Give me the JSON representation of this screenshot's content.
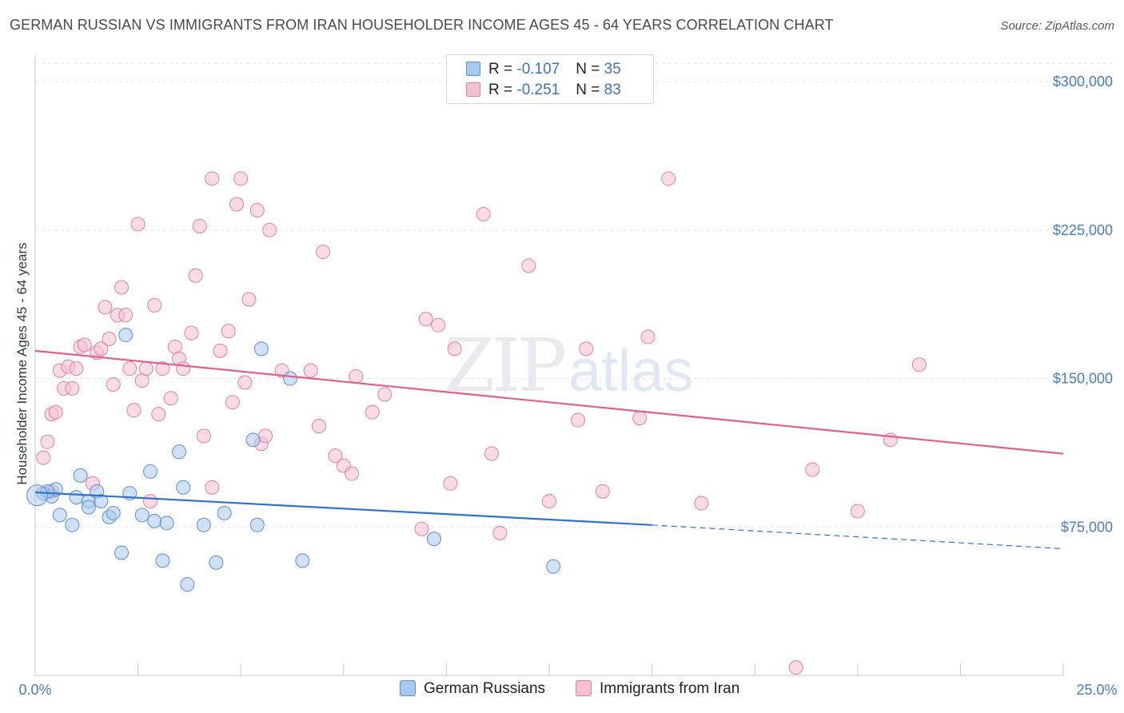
{
  "title": "GERMAN RUSSIAN VS IMMIGRANTS FROM IRAN HOUSEHOLDER INCOME AGES 45 - 64 YEARS CORRELATION CHART",
  "source": "Source: ZipAtlas.com",
  "watermark": {
    "zip": "ZIP",
    "atlas": "atlas"
  },
  "legend": {
    "rows": [
      {
        "r_label": "R = ",
        "r_value": "-0.107",
        "n_label": "N = ",
        "n_value": "35",
        "color": "#a9c8f0",
        "border": "#5b8fd6"
      },
      {
        "r_label": "R = ",
        "r_value": "-0.251",
        "n_label": "N = ",
        "n_value": "83",
        "color": "#f7bfd2",
        "border": "#e27fa3"
      }
    ]
  },
  "bottom_legend": [
    {
      "label": "German Russians",
      "color": "#a9c8f0",
      "border": "#5b8fd6"
    },
    {
      "label": "Immigrants from Iran",
      "color": "#f7bfd2",
      "border": "#e27fa3"
    }
  ],
  "chart_data": {
    "type": "scatter",
    "title": "GERMAN RUSSIAN VS IMMIGRANTS FROM IRAN HOUSEHOLDER INCOME AGES 45 - 64 YEARS CORRELATION CHART",
    "xlabel": "",
    "ylabel": "Householder Income Ages 45 - 64 years",
    "xlim": [
      0,
      25
    ],
    "ylim": [
      0,
      317000
    ],
    "x_tick_labels": [
      "0.0%",
      "25.0%"
    ],
    "y_ticks": [
      75000,
      150000,
      225000,
      300000
    ],
    "y_tick_labels": [
      "$75,000",
      "$150,000",
      "$225,000",
      "$300,000"
    ],
    "grid": true,
    "legend_position": "top-center",
    "series": [
      {
        "name": "German Russians",
        "color": "#a9c8f0",
        "stroke": "#5b8fd6",
        "trend": {
          "x": [
            0,
            15
          ],
          "y": [
            92500,
            76000
          ],
          "dashed_to": [
            25,
            64000
          ],
          "color": "#2f72c9"
        },
        "points": [
          [
            0.2,
            92000
          ],
          [
            0.4,
            90500
          ],
          [
            0.5,
            94000
          ],
          [
            0.6,
            81000
          ],
          [
            0.9,
            76000
          ],
          [
            1.0,
            90000
          ],
          [
            1.3,
            88000
          ],
          [
            1.1,
            101000
          ],
          [
            1.3,
            85000
          ],
          [
            1.5,
            93000
          ],
          [
            1.6,
            88000
          ],
          [
            1.8,
            80000
          ],
          [
            1.9,
            82000
          ],
          [
            2.1,
            62000
          ],
          [
            2.2,
            172000
          ],
          [
            2.3,
            92000
          ],
          [
            2.6,
            81000
          ],
          [
            2.8,
            103000
          ],
          [
            2.9,
            78000
          ],
          [
            3.1,
            58000
          ],
          [
            3.2,
            77000
          ],
          [
            3.5,
            113000
          ],
          [
            3.6,
            95000
          ],
          [
            3.7,
            46000
          ],
          [
            4.1,
            76000
          ],
          [
            4.4,
            57000
          ],
          [
            4.6,
            82000
          ],
          [
            5.3,
            119000
          ],
          [
            5.4,
            76000
          ],
          [
            5.5,
            165000
          ],
          [
            6.2,
            150000
          ],
          [
            6.5,
            58000
          ],
          [
            9.7,
            69000
          ],
          [
            12.6,
            55000
          ],
          [
            0.3,
            93000
          ]
        ]
      },
      {
        "name": "Immigrants from Iran",
        "color": "#f7bfd2",
        "stroke": "#e27fa3",
        "trend": {
          "x": [
            0,
            25
          ],
          "y": [
            164000,
            112000
          ],
          "color": "#e0608c"
        },
        "points": [
          [
            0.2,
            110000
          ],
          [
            0.3,
            118000
          ],
          [
            0.4,
            93000
          ],
          [
            0.4,
            132000
          ],
          [
            0.5,
            133000
          ],
          [
            0.6,
            154000
          ],
          [
            0.7,
            145000
          ],
          [
            0.8,
            156000
          ],
          [
            0.9,
            145000
          ],
          [
            1.0,
            155000
          ],
          [
            1.1,
            166000
          ],
          [
            1.2,
            167000
          ],
          [
            1.4,
            97000
          ],
          [
            1.5,
            163000
          ],
          [
            1.6,
            165000
          ],
          [
            1.7,
            186000
          ],
          [
            1.8,
            170000
          ],
          [
            1.9,
            147000
          ],
          [
            2.0,
            182000
          ],
          [
            2.1,
            196000
          ],
          [
            2.2,
            182000
          ],
          [
            2.3,
            155000
          ],
          [
            2.4,
            134000
          ],
          [
            2.5,
            228000
          ],
          [
            2.6,
            149000
          ],
          [
            2.7,
            155000
          ],
          [
            2.8,
            88000
          ],
          [
            2.9,
            187000
          ],
          [
            3.0,
            132000
          ],
          [
            3.1,
            155000
          ],
          [
            3.3,
            140000
          ],
          [
            3.4,
            166000
          ],
          [
            3.5,
            160000
          ],
          [
            3.6,
            155000
          ],
          [
            3.8,
            173000
          ],
          [
            3.9,
            202000
          ],
          [
            4.0,
            227000
          ],
          [
            4.1,
            121000
          ],
          [
            4.3,
            95000
          ],
          [
            4.3,
            251000
          ],
          [
            4.5,
            164000
          ],
          [
            4.7,
            174000
          ],
          [
            4.8,
            138000
          ],
          [
            4.9,
            238000
          ],
          [
            5.0,
            251000
          ],
          [
            5.1,
            148000
          ],
          [
            5.2,
            190000
          ],
          [
            5.4,
            235000
          ],
          [
            5.5,
            117000
          ],
          [
            5.6,
            121000
          ],
          [
            5.7,
            225000
          ],
          [
            6.0,
            154000
          ],
          [
            6.7,
            154000
          ],
          [
            6.9,
            126000
          ],
          [
            7.0,
            214000
          ],
          [
            7.3,
            111000
          ],
          [
            7.5,
            106000
          ],
          [
            7.7,
            102000
          ],
          [
            7.8,
            151000
          ],
          [
            8.2,
            133000
          ],
          [
            8.5,
            142000
          ],
          [
            9.4,
            74000
          ],
          [
            9.5,
            180000
          ],
          [
            9.8,
            177000
          ],
          [
            10.1,
            97000
          ],
          [
            10.2,
            165000
          ],
          [
            10.9,
            233000
          ],
          [
            11.1,
            112000
          ],
          [
            11.3,
            72000
          ],
          [
            12.0,
            207000
          ],
          [
            12.5,
            88000
          ],
          [
            13.2,
            129000
          ],
          [
            13.4,
            165000
          ],
          [
            13.8,
            93000
          ],
          [
            14.7,
            130000
          ],
          [
            14.9,
            171000
          ],
          [
            15.4,
            251000
          ],
          [
            16.2,
            87000
          ],
          [
            18.5,
            4000
          ],
          [
            18.9,
            104000
          ],
          [
            20.0,
            83000
          ],
          [
            20.8,
            119000
          ],
          [
            21.5,
            157000
          ]
        ]
      }
    ]
  }
}
